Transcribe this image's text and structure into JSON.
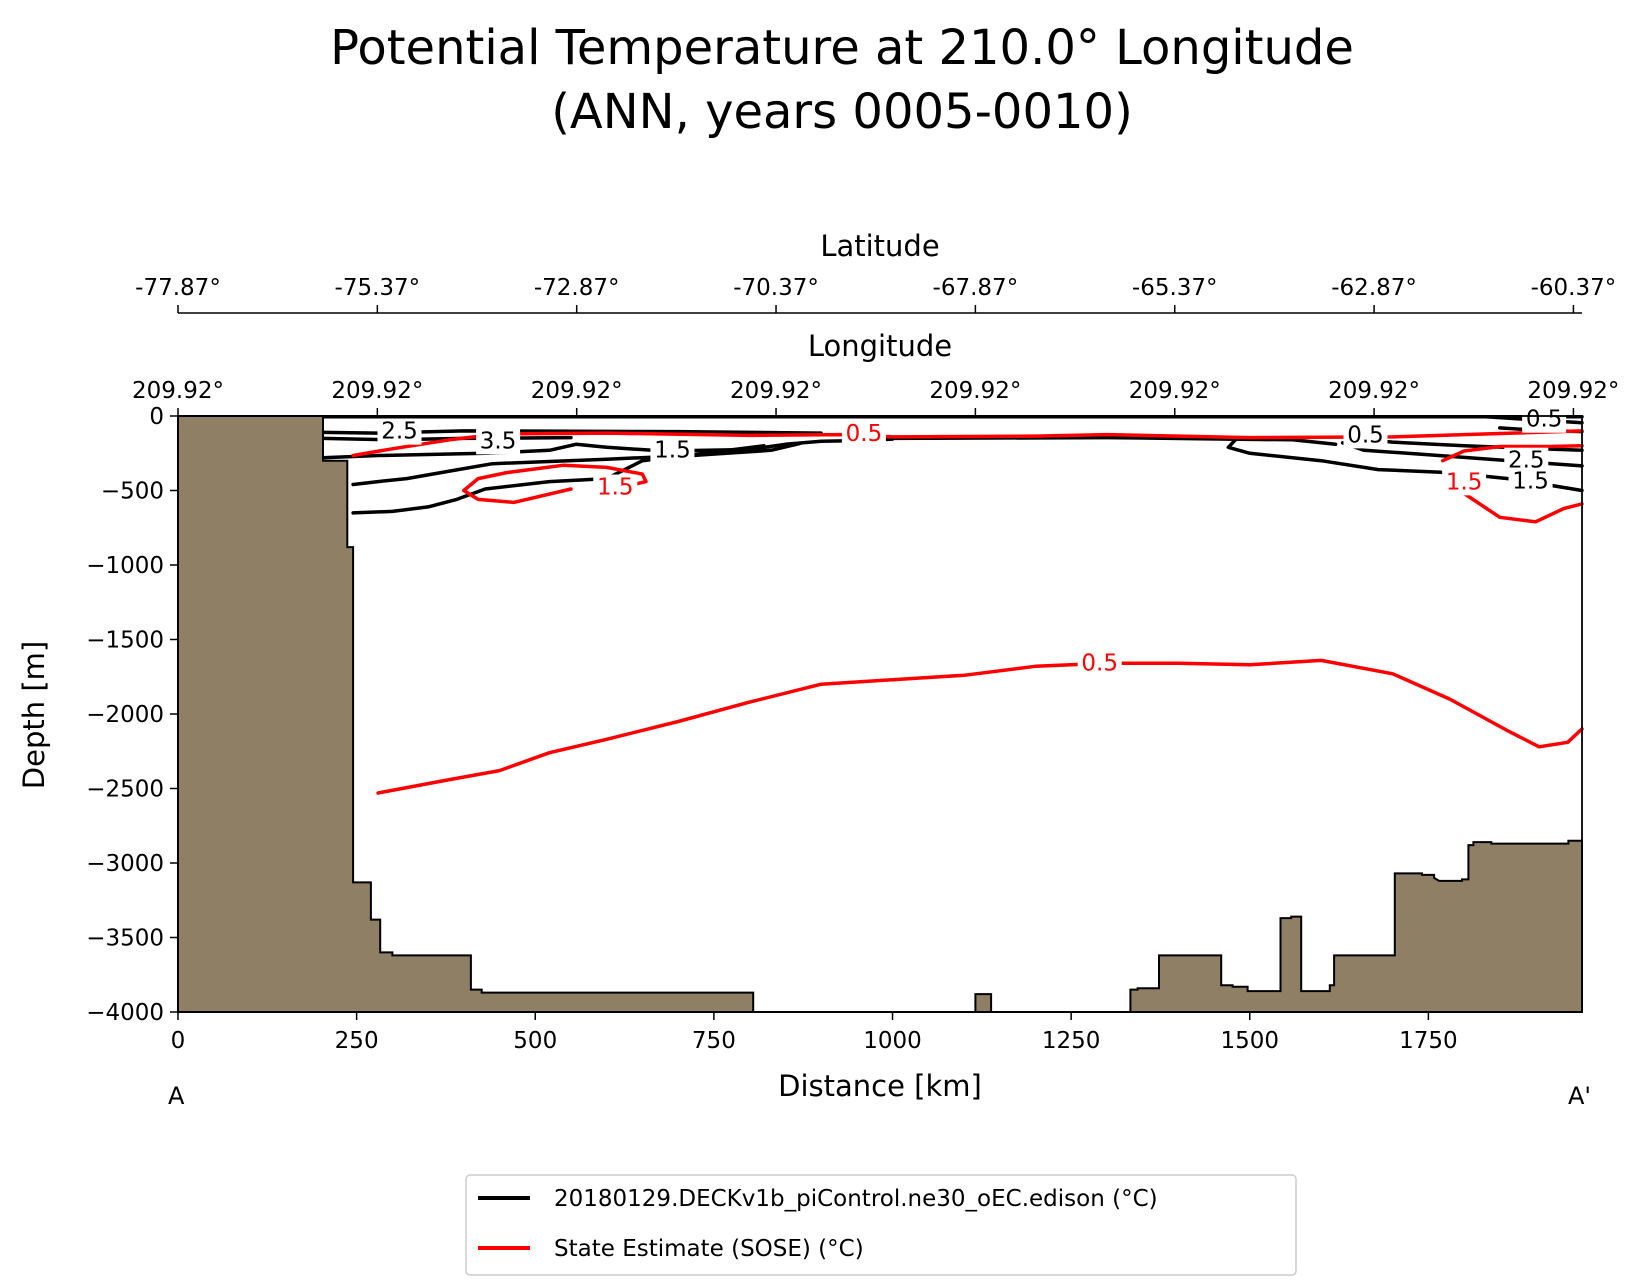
{
  "chart_data": {
    "type": "contour_section",
    "title_line1": "Potential Temperature at 210.0° Longitude",
    "title_line2": "(ANN, years 0005-0010)",
    "xlabel": "Distance [km]",
    "ylabel": "Depth [m]",
    "xlim": [
      0,
      1965
    ],
    "ylim": [
      -4000,
      0
    ],
    "x_ticks": [
      0,
      250,
      500,
      750,
      1000,
      1250,
      1500,
      1750
    ],
    "y_ticks": [
      0,
      -500,
      -1000,
      -1500,
      -2000,
      -2500,
      -3000,
      -3500,
      -4000
    ],
    "x_tick_labels": [
      "0",
      "250",
      "500",
      "750",
      "1000",
      "1250",
      "1500",
      "1750"
    ],
    "y_tick_labels": [
      "0",
      "−500",
      "−1000",
      "−1500",
      "−2000",
      "−2500",
      "−3000",
      "−3500",
      "−4000"
    ],
    "start_label": "A",
    "end_label": "A'",
    "latitude_axis": {
      "label": "Latitude",
      "tick_positions_km": [
        0,
        279,
        558,
        837,
        1116,
        1395,
        1674,
        1953
      ],
      "tick_labels": [
        "-77.87°",
        "-75.37°",
        "-72.87°",
        "-70.37°",
        "-67.87°",
        "-65.37°",
        "-62.87°",
        "-60.37°"
      ]
    },
    "longitude_axis": {
      "label": "Longitude",
      "tick_positions_km": [
        0,
        279,
        558,
        837,
        1116,
        1395,
        1674,
        1953
      ],
      "tick_labels": [
        "209.92°",
        "209.92°",
        "209.92°",
        "209.92°",
        "209.92°",
        "209.92°",
        "209.92°",
        "209.92°"
      ]
    },
    "bathymetry_color": "#8f7f64",
    "bathymetry": [
      [
        0,
        0
      ],
      [
        203,
        0
      ],
      [
        203,
        -300
      ],
      [
        237,
        -300
      ],
      [
        237,
        -880
      ],
      [
        245,
        -880
      ],
      [
        245,
        -3130
      ],
      [
        270,
        -3130
      ],
      [
        270,
        -3380
      ],
      [
        283,
        -3380
      ],
      [
        283,
        -3600
      ],
      [
        300,
        -3600
      ],
      [
        300,
        -3620
      ],
      [
        410,
        -3620
      ],
      [
        410,
        -3850
      ],
      [
        425,
        -3850
      ],
      [
        425,
        -3870
      ],
      [
        805,
        -3870
      ],
      [
        805,
        -4000
      ],
      [
        1116,
        -4000
      ],
      [
        1116,
        -3880
      ],
      [
        1138,
        -3880
      ],
      [
        1138,
        -4000
      ],
      [
        1333,
        -4000
      ],
      [
        1333,
        -3850
      ],
      [
        1343,
        -3850
      ],
      [
        1343,
        -3840
      ],
      [
        1373,
        -3840
      ],
      [
        1373,
        -3620
      ],
      [
        1460,
        -3620
      ],
      [
        1460,
        -3820
      ],
      [
        1476,
        -3820
      ],
      [
        1476,
        -3830
      ],
      [
        1497,
        -3830
      ],
      [
        1497,
        -3860
      ],
      [
        1543,
        -3860
      ],
      [
        1543,
        -3370
      ],
      [
        1558,
        -3370
      ],
      [
        1558,
        -3360
      ],
      [
        1572,
        -3360
      ],
      [
        1572,
        -3860
      ],
      [
        1612,
        -3860
      ],
      [
        1612,
        -3820
      ],
      [
        1618,
        -3820
      ],
      [
        1618,
        -3620
      ],
      [
        1703,
        -3620
      ],
      [
        1703,
        -3070
      ],
      [
        1741,
        -3070
      ],
      [
        1741,
        -3080
      ],
      [
        1758,
        -3080
      ],
      [
        1758,
        -3100
      ],
      [
        1765,
        -3120
      ],
      [
        1797,
        -3120
      ],
      [
        1797,
        -3110
      ],
      [
        1806,
        -3110
      ],
      [
        1806,
        -2880
      ],
      [
        1813,
        -2880
      ],
      [
        1813,
        -2860
      ],
      [
        1838,
        -2860
      ],
      [
        1838,
        -2870
      ],
      [
        1946,
        -2870
      ],
      [
        1946,
        -2850
      ],
      [
        1965,
        -2850
      ],
      [
        1965,
        -4000
      ],
      [
        0,
        -4000
      ]
    ],
    "model_series": {
      "name": "20180129.DECKv1b_piControl.ne30_oEC.edison (°C)",
      "color": "#000000",
      "contours": [
        {
          "level": 0.5,
          "points": [
            [
              203,
              -5
            ],
            [
              1965,
              -5
            ]
          ]
        },
        {
          "level": 2.5,
          "points": [
            [
              203,
              -110
            ],
            [
              280,
              -115
            ],
            [
              400,
              -100
            ],
            [
              700,
              -105
            ],
            [
              900,
              -115
            ]
          ]
        },
        {
          "level": 3.5,
          "points": [
            [
              203,
              -150
            ],
            [
              300,
              -160
            ],
            [
              400,
              -150
            ],
            [
              550,
              -145
            ]
          ]
        },
        {
          "level": 1.5,
          "points": [
            [
              203,
              -280
            ],
            [
              280,
              -265
            ],
            [
              430,
              -250
            ],
            [
              520,
              -230
            ],
            [
              557,
              -190
            ],
            [
              600,
              -210
            ],
            [
              680,
              -235
            ],
            [
              800,
              -225
            ],
            [
              850,
              -190
            ],
            [
              900,
              -170
            ],
            [
              950,
              -165
            ],
            [
              1000,
              -155
            ]
          ]
        },
        {
          "level": 1.5,
          "points": [
            [
              245,
              -460
            ],
            [
              280,
              -440
            ],
            [
              320,
              -420
            ],
            [
              380,
              -370
            ],
            [
              440,
              -320
            ],
            [
              600,
              -290
            ],
            [
              720,
              -265
            ],
            [
              830,
              -230
            ],
            [
              870,
              -185
            ]
          ]
        },
        {
          "level": 0.5,
          "points": [
            [
              245,
              -650
            ],
            [
              300,
              -640
            ],
            [
              350,
              -610
            ],
            [
              390,
              -560
            ],
            [
              430,
              -490
            ],
            [
              520,
              -440
            ],
            [
              600,
              -420
            ],
            [
              650,
              -300
            ],
            [
              720,
              -260
            ],
            [
              820,
              -200
            ]
          ]
        },
        {
          "level": 0.5,
          "points": [
            [
              1000,
              -150
            ],
            [
              1300,
              -145
            ],
            [
              1470,
              -155
            ],
            [
              1560,
              -160
            ],
            [
              1620,
              -190
            ]
          ]
        },
        {
          "level": 0.5,
          "points": [
            [
              1480,
              -160
            ],
            [
              1470,
              -210
            ],
            [
              1500,
              -250
            ],
            [
              1600,
              -300
            ],
            [
              1680,
              -360
            ],
            [
              1780,
              -380
            ],
            [
              1870,
              -425
            ],
            [
              1965,
              -500
            ]
          ]
        },
        {
          "level": 2.5,
          "points": [
            [
              1630,
              -180
            ],
            [
              1660,
              -230
            ],
            [
              1750,
              -260
            ],
            [
              1850,
              -295
            ],
            [
              1965,
              -335
            ]
          ]
        },
        {
          "level": 1.5,
          "points": [
            [
              1640,
              -150
            ],
            [
              1700,
              -175
            ],
            [
              1800,
              -200
            ],
            [
              1965,
              -230
            ]
          ]
        },
        {
          "level": 0.5,
          "points": [
            [
              1830,
              -5
            ],
            [
              1880,
              -20
            ],
            [
              1965,
              -45
            ]
          ]
        },
        {
          "level": 0.5,
          "points": [
            [
              1850,
              -80
            ],
            [
              1900,
              -95
            ],
            [
              1965,
              -105
            ]
          ]
        }
      ],
      "labels": [
        {
          "text": "2.5",
          "x": 310,
          "y": -105
        },
        {
          "text": "3.5",
          "x": 448,
          "y": -170
        },
        {
          "text": "1.5",
          "x": 692,
          "y": -230
        },
        {
          "text": "0.5",
          "x": 1662,
          "y": -130
        },
        {
          "text": "0.5",
          "x": 1912,
          "y": -25
        },
        {
          "text": "2.5",
          "x": 1887,
          "y": -300
        },
        {
          "text": "1.5",
          "x": 1893,
          "y": -440
        }
      ]
    },
    "reference_series": {
      "name": "State Estimate (SOSE) (°C)",
      "color": "#ff0000",
      "contours": [
        {
          "level": 0.5,
          "points": [
            [
              245,
              -265
            ],
            [
              300,
              -220
            ],
            [
              380,
              -160
            ],
            [
              450,
              -120
            ],
            [
              600,
              -115
            ],
            [
              800,
              -130
            ],
            [
              930,
              -125
            ],
            [
              1000,
              -140
            ],
            [
              1200,
              -135
            ],
            [
              1300,
              -125
            ],
            [
              1500,
              -145
            ],
            [
              1700,
              -140
            ],
            [
              1800,
              -125
            ],
            [
              1965,
              -100
            ]
          ]
        },
        {
          "level": 1.5,
          "points": [
            [
              550,
              -490
            ],
            [
              470,
              -580
            ],
            [
              420,
              -560
            ],
            [
              400,
              -500
            ],
            [
              420,
              -420
            ],
            [
              460,
              -380
            ],
            [
              540,
              -330
            ],
            [
              600,
              -345
            ],
            [
              650,
              -390
            ],
            [
              655,
              -440
            ],
            [
              610,
              -490
            ]
          ]
        },
        {
          "level": 1.5,
          "points": [
            [
              1770,
              -300
            ],
            [
              1800,
              -235
            ],
            [
              1850,
              -205
            ],
            [
              1920,
              -205
            ],
            [
              1965,
              -200
            ]
          ]
        },
        {
          "level": 1.5,
          "points": [
            [
              1775,
              -385
            ],
            [
              1800,
              -520
            ],
            [
              1850,
              -680
            ],
            [
              1900,
              -710
            ],
            [
              1940,
              -620
            ],
            [
              1965,
              -590
            ]
          ]
        },
        {
          "level": 0.5,
          "points": [
            [
              280,
              -2530
            ],
            [
              380,
              -2440
            ],
            [
              450,
              -2380
            ],
            [
              520,
              -2260
            ],
            [
              600,
              -2170
            ],
            [
              700,
              -2050
            ],
            [
              800,
              -1920
            ],
            [
              900,
              -1800
            ],
            [
              1000,
              -1770
            ],
            [
              1100,
              -1740
            ],
            [
              1200,
              -1680
            ],
            [
              1300,
              -1660
            ],
            [
              1400,
              -1660
            ],
            [
              1500,
              -1670
            ],
            [
              1600,
              -1640
            ],
            [
              1700,
              -1730
            ],
            [
              1780,
              -1900
            ],
            [
              1860,
              -2110
            ],
            [
              1905,
              -2220
            ],
            [
              1945,
              -2190
            ],
            [
              1965,
              -2100
            ]
          ]
        }
      ],
      "labels": [
        {
          "text": "0.5",
          "x": 960,
          "y": -120
        },
        {
          "text": "1.5",
          "x": 612,
          "y": -480
        },
        {
          "text": "0.5",
          "x": 1290,
          "y": -1660
        },
        {
          "text": "1.5",
          "x": 1800,
          "y": -445
        }
      ]
    }
  }
}
